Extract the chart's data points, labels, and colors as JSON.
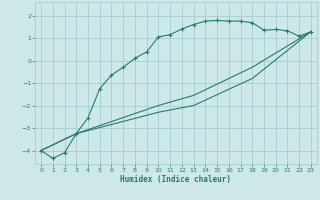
{
  "xlabel": "Humidex (Indice chaleur)",
  "bg_color": "#cce8e8",
  "grid_color": "#aacccc",
  "line_color": "#2a7a6a",
  "xlim": [
    -0.5,
    23.5
  ],
  "ylim": [
    -4.6,
    2.6
  ],
  "xticks": [
    0,
    1,
    2,
    3,
    4,
    5,
    6,
    7,
    8,
    9,
    10,
    11,
    12,
    13,
    14,
    15,
    16,
    17,
    18,
    19,
    20,
    21,
    22,
    23
  ],
  "yticks": [
    -4,
    -3,
    -2,
    -1,
    0,
    1,
    2
  ],
  "curve1_x": [
    0,
    1,
    2,
    3,
    4,
    5,
    6,
    7,
    8,
    9,
    10,
    11,
    12,
    13,
    14,
    15,
    16,
    17,
    18,
    19,
    20,
    21,
    22,
    23
  ],
  "curve1_y": [
    -4.0,
    -4.35,
    -4.1,
    -3.25,
    -2.55,
    -1.25,
    -0.65,
    -0.3,
    0.1,
    0.38,
    1.05,
    1.15,
    1.4,
    1.6,
    1.75,
    1.78,
    1.75,
    1.75,
    1.68,
    1.35,
    1.38,
    1.32,
    1.08,
    1.28
  ],
  "curve2_x": [
    0,
    3,
    10,
    13,
    18,
    23
  ],
  "curve2_y": [
    -4.0,
    -3.25,
    -2.0,
    -1.55,
    -0.3,
    1.28
  ],
  "curve3_x": [
    0,
    3,
    10,
    13,
    18,
    23
  ],
  "curve3_y": [
    -4.0,
    -3.25,
    -2.3,
    -2.0,
    -0.8,
    1.28
  ]
}
